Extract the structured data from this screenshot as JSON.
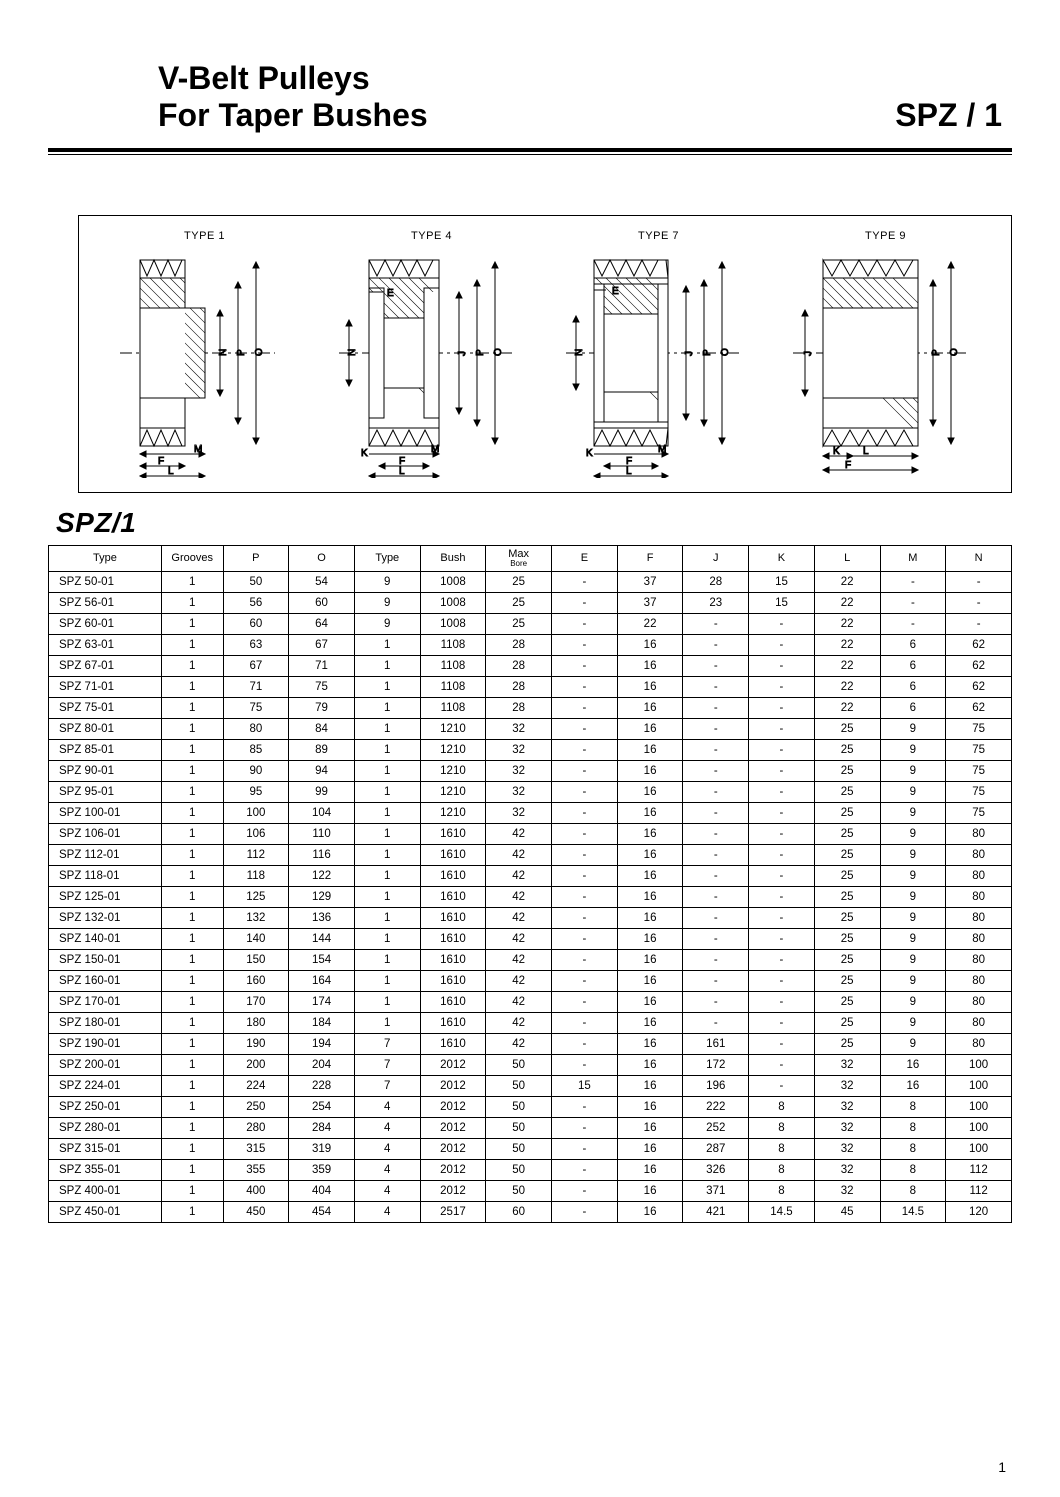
{
  "header": {
    "title_line1": "V-Belt  Pulleys",
    "title_line2": "For Taper Bushes",
    "right": "SPZ / 1"
  },
  "diagram_labels": [
    "TYPE 1",
    "TYPE 4",
    "TYPE 7",
    "TYPE 9"
  ],
  "diagram_letters": {
    "E": "E",
    "N": "N",
    "P": "P",
    "O": "O",
    "J": "J",
    "K": "K",
    "M": "M",
    "F": "F",
    "L": "L"
  },
  "section_title": "SPZ/1",
  "page_number": "1",
  "table": {
    "columns": [
      "Type",
      "Grooves",
      "P",
      "O",
      "Type",
      "Bush",
      "Max\nBore",
      "E",
      "F",
      "J",
      "K",
      "L",
      "M",
      "N"
    ],
    "rows": [
      [
        "SPZ  50-01",
        "1",
        "50",
        "54",
        "9",
        "1008",
        "25",
        "-",
        "37",
        "28",
        "15",
        "22",
        "-",
        "-"
      ],
      [
        "SPZ  56-01",
        "1",
        "56",
        "60",
        "9",
        "1008",
        "25",
        "-",
        "37",
        "23",
        "15",
        "22",
        "-",
        "-"
      ],
      [
        "SPZ  60-01",
        "1",
        "60",
        "64",
        "9",
        "1008",
        "25",
        "-",
        "22",
        "-",
        "-",
        "22",
        "-",
        "-"
      ],
      [
        "SPZ  63-01",
        "1",
        "63",
        "67",
        "1",
        "1108",
        "28",
        "-",
        "16",
        "-",
        "-",
        "22",
        "6",
        "62"
      ],
      [
        "SPZ  67-01",
        "1",
        "67",
        "71",
        "1",
        "1108",
        "28",
        "-",
        "16",
        "-",
        "-",
        "22",
        "6",
        "62"
      ],
      [
        "SPZ  71-01",
        "1",
        "71",
        "75",
        "1",
        "1108",
        "28",
        "-",
        "16",
        "-",
        "-",
        "22",
        "6",
        "62"
      ],
      [
        "SPZ  75-01",
        "1",
        "75",
        "79",
        "1",
        "1108",
        "28",
        "-",
        "16",
        "-",
        "-",
        "22",
        "6",
        "62"
      ],
      [
        "SPZ  80-01",
        "1",
        "80",
        "84",
        "1",
        "1210",
        "32",
        "-",
        "16",
        "-",
        "-",
        "25",
        "9",
        "75"
      ],
      [
        "SPZ  85-01",
        "1",
        "85",
        "89",
        "1",
        "1210",
        "32",
        "-",
        "16",
        "-",
        "-",
        "25",
        "9",
        "75"
      ],
      [
        "SPZ  90-01",
        "1",
        "90",
        "94",
        "1",
        "1210",
        "32",
        "-",
        "16",
        "-",
        "-",
        "25",
        "9",
        "75"
      ],
      [
        "SPZ  95-01",
        "1",
        "95",
        "99",
        "1",
        "1210",
        "32",
        "-",
        "16",
        "-",
        "-",
        "25",
        "9",
        "75"
      ],
      [
        "SPZ  100-01",
        "1",
        "100",
        "104",
        "1",
        "1210",
        "32",
        "-",
        "16",
        "-",
        "-",
        "25",
        "9",
        "75"
      ],
      [
        "SPZ  106-01",
        "1",
        "106",
        "110",
        "1",
        "1610",
        "42",
        "-",
        "16",
        "-",
        "-",
        "25",
        "9",
        "80"
      ],
      [
        "SPZ  112-01",
        "1",
        "112",
        "116",
        "1",
        "1610",
        "42",
        "-",
        "16",
        "-",
        "-",
        "25",
        "9",
        "80"
      ],
      [
        "SPZ  118-01",
        "1",
        "118",
        "122",
        "1",
        "1610",
        "42",
        "-",
        "16",
        "-",
        "-",
        "25",
        "9",
        "80"
      ],
      [
        "SPZ  125-01",
        "1",
        "125",
        "129",
        "1",
        "1610",
        "42",
        "-",
        "16",
        "-",
        "-",
        "25",
        "9",
        "80"
      ],
      [
        "SPZ  132-01",
        "1",
        "132",
        "136",
        "1",
        "1610",
        "42",
        "-",
        "16",
        "-",
        "-",
        "25",
        "9",
        "80"
      ],
      [
        "SPZ  140-01",
        "1",
        "140",
        "144",
        "1",
        "1610",
        "42",
        "-",
        "16",
        "-",
        "-",
        "25",
        "9",
        "80"
      ],
      [
        "SPZ  150-01",
        "1",
        "150",
        "154",
        "1",
        "1610",
        "42",
        "-",
        "16",
        "-",
        "-",
        "25",
        "9",
        "80"
      ],
      [
        "SPZ  160-01",
        "1",
        "160",
        "164",
        "1",
        "1610",
        "42",
        "-",
        "16",
        "-",
        "-",
        "25",
        "9",
        "80"
      ],
      [
        "SPZ  170-01",
        "1",
        "170",
        "174",
        "1",
        "1610",
        "42",
        "-",
        "16",
        "-",
        "-",
        "25",
        "9",
        "80"
      ],
      [
        "SPZ  180-01",
        "1",
        "180",
        "184",
        "1",
        "1610",
        "42",
        "-",
        "16",
        "-",
        "-",
        "25",
        "9",
        "80"
      ],
      [
        "SPZ  190-01",
        "1",
        "190",
        "194",
        "7",
        "1610",
        "42",
        "-",
        "16",
        "161",
        "-",
        "25",
        "9",
        "80"
      ],
      [
        "SPZ  200-01",
        "1",
        "200",
        "204",
        "7",
        "2012",
        "50",
        "-",
        "16",
        "172",
        "-",
        "32",
        "16",
        "100"
      ],
      [
        "SPZ  224-01",
        "1",
        "224",
        "228",
        "7",
        "2012",
        "50",
        "15",
        "16",
        "196",
        "-",
        "32",
        "16",
        "100"
      ],
      [
        "SPZ  250-01",
        "1",
        "250",
        "254",
        "4",
        "2012",
        "50",
        "-",
        "16",
        "222",
        "8",
        "32",
        "8",
        "100"
      ],
      [
        "SPZ  280-01",
        "1",
        "280",
        "284",
        "4",
        "2012",
        "50",
        "-",
        "16",
        "252",
        "8",
        "32",
        "8",
        "100"
      ],
      [
        "SPZ  315-01",
        "1",
        "315",
        "319",
        "4",
        "2012",
        "50",
        "-",
        "16",
        "287",
        "8",
        "32",
        "8",
        "100"
      ],
      [
        "SPZ  355-01",
        "1",
        "355",
        "359",
        "4",
        "2012",
        "50",
        "-",
        "16",
        "326",
        "8",
        "32",
        "8",
        "112"
      ],
      [
        "SPZ  400-01",
        "1",
        "400",
        "404",
        "4",
        "2012",
        "50",
        "-",
        "16",
        "371",
        "8",
        "32",
        "8",
        "112"
      ],
      [
        "SPZ  450-01",
        "1",
        "450",
        "454",
        "4",
        "2517",
        "60",
        "-",
        "16",
        "421",
        "14.5",
        "45",
        "14.5",
        "120"
      ]
    ]
  },
  "style": {
    "page_bg": "#ffffff",
    "stroke": "#000000",
    "hatch": "#000000",
    "font_family": "Arial",
    "title_fontsize": 32,
    "section_fontsize": 28,
    "table_fontsize": 11.5,
    "diagram_label_fontsize": 11
  }
}
